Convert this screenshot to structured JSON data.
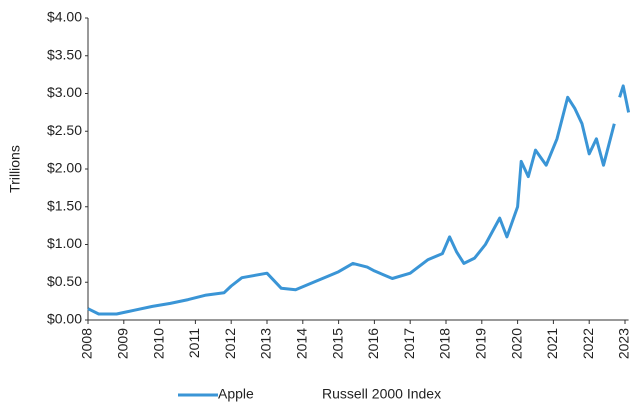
{
  "chart_data": {
    "type": "line",
    "y_label": "Trillions",
    "x": [
      2008.0,
      2008.3,
      2008.8,
      2009.3,
      2009.8,
      2010.3,
      2010.8,
      2011.3,
      2011.8,
      2012.0,
      2012.3,
      2013.0,
      2013.4,
      2013.8,
      2014.3,
      2014.7,
      2015.0,
      2015.4,
      2015.8,
      2016.0,
      2016.5,
      2017.0,
      2017.5,
      2017.9,
      2018.1,
      2018.3,
      2018.5,
      2018.8,
      2019.1,
      2019.5,
      2019.7,
      2020.0,
      2020.1,
      2020.3,
      2020.5,
      2020.8,
      2021.1,
      2021.4,
      2021.6,
      2021.8,
      2022.0,
      2022.2,
      2022.4,
      2022.7,
      2022.75,
      2022.85,
      2022.95,
      2023.1
    ],
    "series": [
      {
        "name": "Apple",
        "color": "#3a95d6",
        "values": [
          0.15,
          0.08,
          0.08,
          0.13,
          0.18,
          0.22,
          0.27,
          0.33,
          0.36,
          0.45,
          0.56,
          0.62,
          0.42,
          0.4,
          0.5,
          0.58,
          0.64,
          0.75,
          0.7,
          0.65,
          0.55,
          0.62,
          0.8,
          0.88,
          1.1,
          0.9,
          0.75,
          0.82,
          1.0,
          1.35,
          1.1,
          1.5,
          2.1,
          1.9,
          2.25,
          2.05,
          2.4,
          2.95,
          2.8,
          2.6,
          2.2,
          2.4,
          2.05,
          2.6,
          null,
          2.95,
          3.1,
          2.75
        ]
      },
      {
        "name": "Russell 2000 Index",
        "color": "#ffffff",
        "values": [
          null,
          null,
          null,
          null,
          null,
          null,
          null,
          null,
          null,
          null,
          null,
          null,
          null,
          null,
          null,
          null,
          null,
          null,
          null,
          null,
          null,
          null,
          null,
          null,
          null,
          null,
          null,
          null,
          null,
          null,
          null,
          null,
          null,
          null,
          null,
          null,
          null,
          null,
          null,
          null,
          null,
          null,
          null,
          null,
          null,
          null,
          null,
          null
        ]
      }
    ],
    "xlim": [
      2008,
      2023.1
    ],
    "xticks": [
      2008,
      2009,
      2010,
      2011,
      2012,
      2013,
      2014,
      2015,
      2016,
      2017,
      2018,
      2019,
      2020,
      2021,
      2022,
      2023
    ],
    "ylim": [
      0,
      4
    ],
    "yticks": [
      {
        "value": 0,
        "label": "$0.00"
      },
      {
        "value": 0.5,
        "label": "$0.50"
      },
      {
        "value": 1,
        "label": "$1.00"
      },
      {
        "value": 1.5,
        "label": "$1.50"
      },
      {
        "value": 2,
        "label": "$2.00"
      },
      {
        "value": 2.5,
        "label": "$2.50"
      },
      {
        "value": 3,
        "label": "$3.00"
      },
      {
        "value": 3.5,
        "label": "$3.50"
      },
      {
        "value": 4,
        "label": "$4.00"
      }
    ],
    "grid": false
  }
}
